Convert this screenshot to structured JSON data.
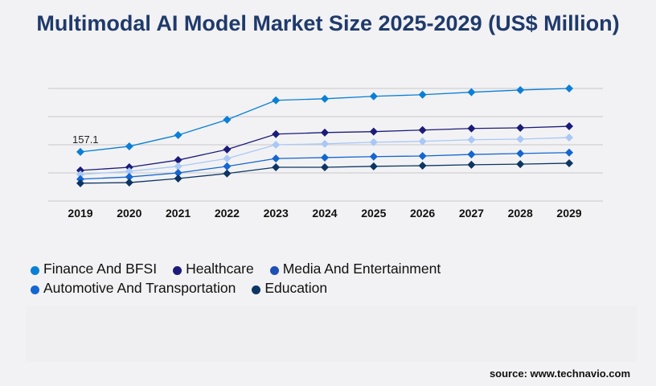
{
  "title": "Multimodal AI Model Market Size 2025-2029 (US$ Million)",
  "source": "source: www.technavio.com",
  "chart_data": {
    "type": "line",
    "title": "Multimodal AI Model Market Size 2025-2029 (US$ Million)",
    "categories": [
      "2019",
      "2020",
      "2021",
      "2022",
      "2023",
      "2024",
      "2025",
      "2026",
      "2027",
      "2028",
      "2029"
    ],
    "ylim": [
      0,
      360
    ],
    "grid": true,
    "legend": "bottom",
    "annotations": [
      {
        "series": "Finance And BFSI",
        "x": "2019",
        "text": "157.1"
      }
    ],
    "series": [
      {
        "name": "Finance And BFSI",
        "color": "#0a7fd6",
        "legend_color": "#0a7fd6",
        "values": [
          157.1,
          175,
          211,
          260,
          322,
          327,
          335,
          340,
          348,
          355,
          360
        ]
      },
      {
        "name": "Healthcare",
        "color": "#1b1b7a",
        "legend_color": "#1b1b7a",
        "values": [
          98,
          108,
          131,
          165,
          214,
          219,
          222,
          227,
          232,
          234,
          239
        ]
      },
      {
        "name": "Media And Entertainment",
        "color": "#a9c8f5",
        "legend_color": "#1e4fb5",
        "values": [
          85,
          95,
          111,
          136,
          180,
          183,
          188,
          191,
          196,
          198,
          203
        ]
      },
      {
        "name": "Automotive And Transportation",
        "color": "#1466d1",
        "legend_color": "#1466d1",
        "values": [
          70,
          77,
          90,
          111,
          136,
          139,
          142,
          144,
          149,
          152,
          155
        ]
      },
      {
        "name": "Education",
        "color": "#0d3563",
        "legend_color": "#0d3563",
        "values": [
          57,
          59,
          72,
          88,
          108,
          108,
          111,
          113,
          116,
          118,
          121
        ]
      }
    ]
  }
}
